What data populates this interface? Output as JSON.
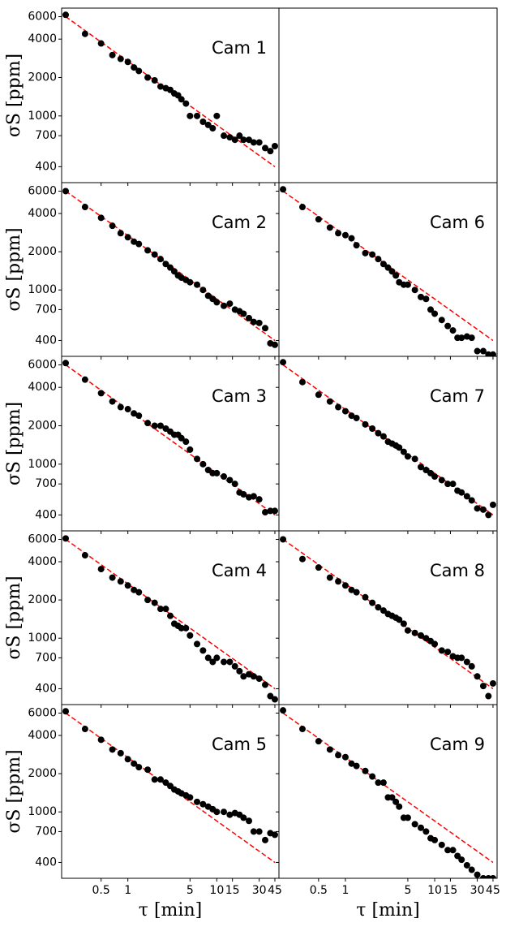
{
  "chart_data": [
    {
      "type": "scatter",
      "title": "Cam 1",
      "ylabel": "σS [ppm]",
      "ytick_labels": true,
      "log_x": true,
      "log_y": true,
      "color": "#000000",
      "x": [
        0.2,
        0.33,
        0.5,
        0.67,
        0.83,
        1,
        1.17,
        1.33,
        1.67,
        2,
        2.33,
        2.67,
        3,
        3.33,
        3.67,
        4,
        4.5,
        5,
        6,
        7,
        8,
        9,
        10,
        12,
        14,
        16,
        18,
        20,
        23,
        26,
        30,
        35,
        40,
        45
      ],
      "values": [
        6200,
        4400,
        3700,
        3000,
        2800,
        2650,
        2400,
        2250,
        2000,
        1900,
        1700,
        1650,
        1600,
        1500,
        1450,
        1350,
        1250,
        1000,
        1000,
        900,
        850,
        800,
        1000,
        700,
        680,
        650,
        700,
        650,
        650,
        620,
        620,
        560,
        530,
        580
      ],
      "fit": {
        "x": [
          0.2,
          45
        ],
        "values": [
          6000,
          400
        ],
        "color": "#ff0000"
      },
      "xlim": [
        0.18,
        50
      ],
      "ylim": [
        300,
        7000
      ],
      "xticks": [
        0.5,
        1,
        5,
        10,
        15,
        30,
        45
      ],
      "yticks": [
        400,
        700,
        1000,
        2000,
        4000,
        6000
      ]
    },
    {
      "type": "scatter",
      "title": "Cam 2",
      "ylabel": "σS [ppm]",
      "ytick_labels": true,
      "log_x": true,
      "log_y": true,
      "color": "#000000",
      "x": [
        0.2,
        0.33,
        0.5,
        0.67,
        0.83,
        1,
        1.17,
        1.33,
        1.67,
        2,
        2.33,
        2.67,
        3,
        3.33,
        3.67,
        4,
        4.5,
        5,
        6,
        7,
        8,
        9,
        10,
        12,
        14,
        16,
        18,
        20,
        23,
        26,
        30,
        35,
        40,
        45
      ],
      "values": [
        6000,
        4500,
        3700,
        3200,
        2800,
        2600,
        2400,
        2300,
        2050,
        1900,
        1750,
        1600,
        1500,
        1400,
        1300,
        1250,
        1200,
        1150,
        1100,
        1000,
        900,
        850,
        800,
        750,
        780,
        700,
        680,
        650,
        600,
        560,
        550,
        500,
        380,
        370
      ],
      "fit": {
        "x": [
          0.2,
          45
        ],
        "values": [
          6000,
          400
        ],
        "color": "#ff0000"
      },
      "xlim": [
        0.18,
        50
      ],
      "ylim": [
        300,
        7000
      ],
      "xticks": [
        0.5,
        1,
        5,
        10,
        15,
        30,
        45
      ],
      "yticks": [
        400,
        700,
        1000,
        2000,
        4000,
        6000
      ]
    },
    {
      "type": "scatter",
      "title": "Cam 3",
      "ylabel": "σS [ppm]",
      "ytick_labels": true,
      "log_x": true,
      "log_y": true,
      "color": "#000000",
      "x": [
        0.2,
        0.33,
        0.5,
        0.67,
        0.83,
        1,
        1.17,
        1.33,
        1.67,
        2,
        2.33,
        2.67,
        3,
        3.33,
        3.67,
        4,
        4.5,
        5,
        6,
        7,
        8,
        9,
        10,
        12,
        14,
        16,
        18,
        20,
        23,
        26,
        30,
        35,
        40,
        45
      ],
      "values": [
        6200,
        4600,
        3600,
        3100,
        2800,
        2700,
        2500,
        2400,
        2100,
        2000,
        2000,
        1900,
        1800,
        1700,
        1700,
        1600,
        1500,
        1300,
        1100,
        1000,
        900,
        850,
        850,
        800,
        750,
        700,
        600,
        580,
        550,
        560,
        530,
        420,
        430,
        430
      ],
      "fit": {
        "x": [
          0.2,
          45
        ],
        "values": [
          6000,
          400
        ],
        "color": "#ff0000"
      },
      "xlim": [
        0.18,
        50
      ],
      "ylim": [
        300,
        7000
      ],
      "xticks": [
        0.5,
        1,
        5,
        10,
        15,
        30,
        45
      ],
      "yticks": [
        400,
        700,
        1000,
        2000,
        4000,
        6000
      ]
    },
    {
      "type": "scatter",
      "title": "Cam 4",
      "ylabel": "σS [ppm]",
      "ytick_labels": true,
      "log_x": true,
      "log_y": true,
      "color": "#000000",
      "x": [
        0.2,
        0.33,
        0.5,
        0.67,
        0.83,
        1,
        1.17,
        1.33,
        1.67,
        2,
        2.33,
        2.67,
        3,
        3.33,
        3.67,
        4,
        4.5,
        5,
        6,
        7,
        8,
        9,
        10,
        12,
        14,
        16,
        18,
        20,
        23,
        26,
        30,
        35,
        40,
        45
      ],
      "values": [
        6100,
        4500,
        3500,
        3000,
        2800,
        2600,
        2400,
        2300,
        2000,
        1900,
        1700,
        1700,
        1500,
        1300,
        1250,
        1200,
        1200,
        1050,
        900,
        800,
        700,
        650,
        700,
        650,
        650,
        600,
        550,
        500,
        520,
        500,
        480,
        430,
        350,
        330
      ],
      "fit": {
        "x": [
          0.2,
          45
        ],
        "values": [
          6000,
          400
        ],
        "color": "#ff0000"
      },
      "xlim": [
        0.18,
        50
      ],
      "ylim": [
        300,
        7000
      ],
      "xticks": [
        0.5,
        1,
        5,
        10,
        15,
        30,
        45
      ],
      "yticks": [
        400,
        700,
        1000,
        2000,
        4000,
        6000
      ]
    },
    {
      "type": "scatter",
      "title": "Cam 5",
      "ylabel": "σS [ppm]",
      "xlabel": "τ [min]",
      "ytick_labels": true,
      "xtick_labels": true,
      "log_x": true,
      "log_y": true,
      "color": "#000000",
      "x": [
        0.2,
        0.33,
        0.5,
        0.67,
        0.83,
        1,
        1.17,
        1.33,
        1.67,
        2,
        2.33,
        2.67,
        3,
        3.33,
        3.67,
        4,
        4.5,
        5,
        6,
        7,
        8,
        9,
        10,
        12,
        14,
        16,
        18,
        20,
        23,
        26,
        30,
        35,
        40,
        45
      ],
      "values": [
        6200,
        4500,
        3700,
        3100,
        2900,
        2600,
        2400,
        2250,
        2150,
        1800,
        1800,
        1700,
        1600,
        1500,
        1450,
        1400,
        1350,
        1300,
        1200,
        1150,
        1100,
        1050,
        1000,
        1000,
        950,
        980,
        950,
        900,
        850,
        700,
        700,
        600,
        680,
        660
      ],
      "fit": {
        "x": [
          0.2,
          45
        ],
        "values": [
          6000,
          400
        ],
        "color": "#ff0000"
      },
      "xlim": [
        0.18,
        50
      ],
      "ylim": [
        300,
        7000
      ],
      "xticks": [
        0.5,
        1,
        5,
        10,
        15,
        30,
        45
      ],
      "yticks": [
        400,
        700,
        1000,
        2000,
        4000,
        6000
      ]
    },
    {
      "type": "scatter",
      "title": "Cam 6",
      "log_x": true,
      "log_y": true,
      "color": "#000000",
      "x": [
        0.2,
        0.33,
        0.5,
        0.67,
        0.83,
        1,
        1.17,
        1.33,
        1.67,
        2,
        2.33,
        2.67,
        3,
        3.33,
        3.67,
        4,
        4.5,
        5,
        6,
        7,
        8,
        9,
        10,
        12,
        14,
        16,
        18,
        20,
        23,
        26,
        30,
        35,
        40,
        45
      ],
      "values": [
        6200,
        4500,
        3600,
        3100,
        2800,
        2700,
        2550,
        2250,
        1950,
        1900,
        1750,
        1600,
        1500,
        1400,
        1300,
        1150,
        1100,
        1100,
        1000,
        880,
        850,
        700,
        650,
        580,
        520,
        480,
        420,
        420,
        430,
        420,
        330,
        330,
        310,
        310
      ],
      "fit": {
        "x": [
          0.2,
          45
        ],
        "values": [
          6000,
          400
        ],
        "color": "#ff0000"
      },
      "xlim": [
        0.18,
        50
      ],
      "ylim": [
        300,
        7000
      ],
      "xticks": [
        0.5,
        1,
        5,
        10,
        15,
        30,
        45
      ],
      "yticks": [
        400,
        700,
        1000,
        2000,
        4000,
        6000
      ]
    },
    {
      "type": "scatter",
      "title": "Cam 7",
      "log_x": true,
      "log_y": true,
      "color": "#000000",
      "x": [
        0.2,
        0.33,
        0.5,
        0.67,
        0.83,
        1,
        1.17,
        1.33,
        1.67,
        2,
        2.33,
        2.67,
        3,
        3.33,
        3.67,
        4,
        4.5,
        5,
        6,
        7,
        8,
        9,
        10,
        12,
        14,
        16,
        18,
        20,
        23,
        26,
        30,
        35,
        40,
        45
      ],
      "values": [
        6300,
        4400,
        3500,
        3100,
        2800,
        2600,
        2400,
        2300,
        2050,
        1900,
        1750,
        1650,
        1500,
        1450,
        1400,
        1350,
        1250,
        1150,
        1100,
        950,
        900,
        850,
        800,
        750,
        700,
        700,
        620,
        600,
        560,
        520,
        450,
        440,
        400,
        480
      ],
      "fit": {
        "x": [
          0.2,
          45
        ],
        "values": [
          6000,
          400
        ],
        "color": "#ff0000"
      },
      "xlim": [
        0.18,
        50
      ],
      "ylim": [
        300,
        7000
      ],
      "xticks": [
        0.5,
        1,
        5,
        10,
        15,
        30,
        45
      ],
      "yticks": [
        400,
        700,
        1000,
        2000,
        4000,
        6000
      ]
    },
    {
      "type": "scatter",
      "title": "Cam 8",
      "log_x": true,
      "log_y": true,
      "color": "#000000",
      "x": [
        0.2,
        0.33,
        0.5,
        0.67,
        0.83,
        1,
        1.17,
        1.33,
        1.67,
        2,
        2.33,
        2.67,
        3,
        3.33,
        3.67,
        4,
        4.5,
        5,
        6,
        7,
        8,
        9,
        10,
        12,
        14,
        16,
        18,
        20,
        23,
        26,
        30,
        35,
        40,
        45
      ],
      "values": [
        6000,
        4200,
        3600,
        3000,
        2800,
        2600,
        2400,
        2300,
        2100,
        1900,
        1750,
        1650,
        1550,
        1500,
        1450,
        1400,
        1300,
        1150,
        1100,
        1050,
        1000,
        950,
        900,
        800,
        780,
        720,
        700,
        700,
        650,
        600,
        500,
        420,
        350,
        440
      ],
      "fit": {
        "x": [
          0.2,
          45
        ],
        "values": [
          6000,
          400
        ],
        "color": "#ff0000"
      },
      "xlim": [
        0.18,
        50
      ],
      "ylim": [
        300,
        7000
      ],
      "xticks": [
        0.5,
        1,
        5,
        10,
        15,
        30,
        45
      ],
      "yticks": [
        400,
        700,
        1000,
        2000,
        4000,
        6000
      ]
    },
    {
      "type": "scatter",
      "title": "Cam 9",
      "xlabel": "τ [min]",
      "xtick_labels": true,
      "log_x": true,
      "log_y": true,
      "color": "#000000",
      "x": [
        0.2,
        0.33,
        0.5,
        0.67,
        0.83,
        1,
        1.17,
        1.33,
        1.67,
        2,
        2.33,
        2.67,
        3,
        3.33,
        3.67,
        4,
        4.5,
        5,
        6,
        7,
        8,
        9,
        10,
        12,
        14,
        16,
        18,
        20,
        23,
        26,
        30,
        35,
        40,
        45
      ],
      "values": [
        6300,
        4500,
        3600,
        3100,
        2800,
        2700,
        2400,
        2300,
        2100,
        1900,
        1700,
        1700,
        1300,
        1300,
        1200,
        1100,
        900,
        900,
        800,
        750,
        700,
        620,
        600,
        550,
        500,
        500,
        450,
        420,
        380,
        350,
        320,
        300,
        300,
        300
      ],
      "fit": {
        "x": [
          0.2,
          45
        ],
        "values": [
          6000,
          400
        ],
        "color": "#ff0000"
      },
      "xlim": [
        0.18,
        50
      ],
      "ylim": [
        300,
        7000
      ],
      "xticks": [
        0.5,
        1,
        5,
        10,
        15,
        30,
        45
      ],
      "yticks": [
        400,
        700,
        1000,
        2000,
        4000,
        6000
      ]
    }
  ]
}
